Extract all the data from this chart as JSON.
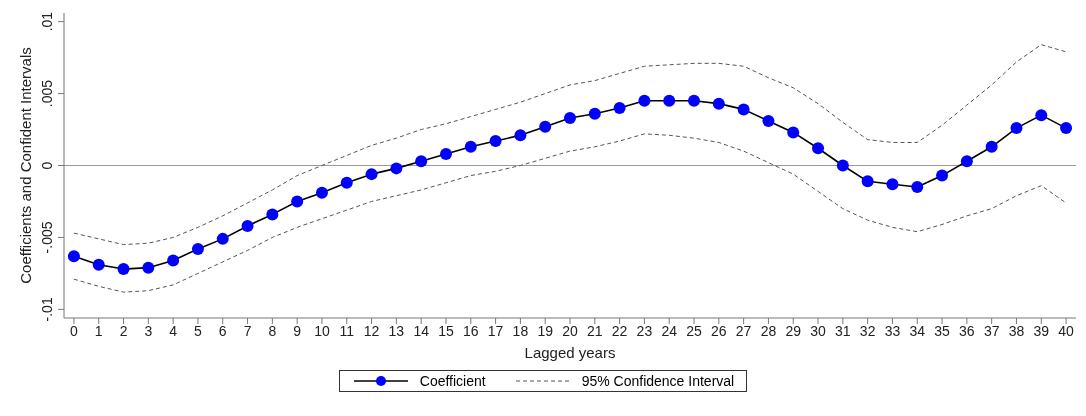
{
  "chart_data": {
    "type": "line",
    "xlabel": "Lagged years",
    "ylabel": "Coefficients and Confident Intervals",
    "x": [
      0,
      1,
      2,
      3,
      4,
      5,
      6,
      7,
      8,
      9,
      10,
      11,
      12,
      13,
      14,
      15,
      16,
      17,
      18,
      19,
      20,
      21,
      22,
      23,
      24,
      25,
      26,
      27,
      28,
      29,
      30,
      31,
      32,
      33,
      34,
      35,
      36,
      37,
      38,
      39,
      40
    ],
    "series": [
      {
        "name": "Coefficient",
        "color": "#0000ff",
        "marker": "circle",
        "line_style": "solid",
        "values": [
          -0.0063,
          -0.0069,
          -0.0072,
          -0.0071,
          -0.0066,
          -0.0058,
          -0.0051,
          -0.0042,
          -0.0034,
          -0.0025,
          -0.0019,
          -0.0012,
          -0.0006,
          -0.0002,
          0.0003,
          0.0008,
          0.0013,
          0.0017,
          0.0021,
          0.0027,
          0.0033,
          0.0036,
          0.004,
          0.0045,
          0.0045,
          0.0045,
          0.0043,
          0.0039,
          0.0031,
          0.0023,
          0.0012,
          0.0,
          -0.0011,
          -0.0013,
          -0.0015,
          -0.0007,
          0.0003,
          0.0013,
          0.0026,
          0.0035,
          0.0026
        ]
      },
      {
        "name": "95% Confidence Interval",
        "color": "#555555",
        "marker": "none",
        "line_style": "dashed",
        "values": [
          -0.0047,
          -0.0051,
          -0.0055,
          -0.0054,
          -0.005,
          -0.0043,
          -0.0035,
          -0.0026,
          -0.0017,
          -0.0007,
          0.0,
          0.0007,
          0.0014,
          0.0019,
          0.0025,
          0.0029,
          0.0034,
          0.0039,
          0.0044,
          0.005,
          0.0056,
          0.0059,
          0.0064,
          0.0069,
          0.007,
          0.0071,
          0.0071,
          0.0069,
          0.0061,
          0.0054,
          0.0043,
          0.003,
          0.0018,
          0.0016,
          0.0016,
          0.0028,
          0.0042,
          0.0056,
          0.0072,
          0.0084,
          0.0079
        ]
      },
      {
        "color": "#555555",
        "marker": "none",
        "line_style": "dashed",
        "values": [
          -0.0079,
          -0.0084,
          -0.0088,
          -0.0087,
          -0.0083,
          -0.0075,
          -0.0067,
          -0.0059,
          -0.005,
          -0.0043,
          -0.0037,
          -0.0031,
          -0.0025,
          -0.0021,
          -0.0017,
          -0.0012,
          -0.0007,
          -0.0004,
          0.0,
          0.0005,
          0.001,
          0.0013,
          0.0017,
          0.0022,
          0.0021,
          0.0019,
          0.0016,
          0.001,
          0.0002,
          -0.0006,
          -0.0018,
          -0.003,
          -0.0038,
          -0.0043,
          -0.0046,
          -0.0041,
          -0.0035,
          -0.003,
          -0.0021,
          -0.0014,
          -0.0026
        ]
      }
    ],
    "xlim": [
      -0.4,
      40.4
    ],
    "xticks": [
      0,
      1,
      2,
      3,
      4,
      5,
      6,
      7,
      8,
      9,
      10,
      11,
      12,
      13,
      14,
      15,
      16,
      17,
      18,
      19,
      20,
      21,
      22,
      23,
      24,
      25,
      26,
      27,
      28,
      29,
      30,
      31,
      32,
      33,
      34,
      35,
      36,
      37,
      38,
      39,
      40
    ],
    "ylim": [
      -0.0106,
      0.0106
    ],
    "yticks": [
      {
        "value": -0.01,
        "label": "-.01"
      },
      {
        "value": -0.005,
        "label": "-.005"
      },
      0,
      {
        "value": 0.005,
        "label": ".005"
      },
      {
        "value": 0.01,
        "label": ".01"
      }
    ],
    "ref_lines": [
      {
        "axis": "y",
        "value": 0,
        "color": "#999999",
        "line_style": "solid"
      }
    ],
    "grid": false,
    "legend": "bottom"
  }
}
